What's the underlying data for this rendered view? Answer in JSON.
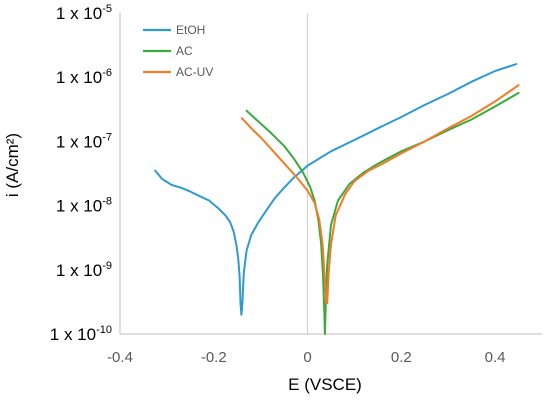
{
  "chart_data": {
    "type": "line",
    "title": "",
    "xlabel": "E (VSCE)",
    "ylabel": "i (A/cm²)",
    "xlim": [
      -0.4,
      0.5
    ],
    "ylim": [
      1e-10,
      1e-05
    ],
    "y_scale": "log",
    "grid": false,
    "legend_position": "top-left",
    "x_ticks": [
      "-0.4",
      "-0.2",
      "0",
      "0.2",
      "0.4"
    ],
    "y_ticks": [
      {
        "value": 1e-05,
        "base": "1 x 10",
        "exp": "-5"
      },
      {
        "value": 1e-06,
        "base": "1 x 10",
        "exp": "-6"
      },
      {
        "value": 1e-07,
        "base": "1 x 10",
        "exp": "-7"
      },
      {
        "value": 1e-08,
        "base": "1 x 10",
        "exp": "-8"
      },
      {
        "value": 1e-09,
        "base": "1 x 10",
        "exp": "-9"
      },
      {
        "value": 1e-10,
        "base": "1 x 10",
        "exp": "-10"
      }
    ],
    "series": [
      {
        "name": "EtOH",
        "color": "#2E9AD0",
        "points": [
          [
            -0.325,
            3.5e-08
          ],
          [
            -0.31,
            2.6e-08
          ],
          [
            -0.29,
            2.1e-08
          ],
          [
            -0.27,
            1.9e-08
          ],
          [
            -0.25,
            1.65e-08
          ],
          [
            -0.23,
            1.4e-08
          ],
          [
            -0.21,
            1.2e-08
          ],
          [
            -0.19,
            9e-09
          ],
          [
            -0.175,
            7e-09
          ],
          [
            -0.165,
            5.5e-09
          ],
          [
            -0.158,
            4e-09
          ],
          [
            -0.152,
            2.5e-09
          ],
          [
            -0.148,
            1.5e-09
          ],
          [
            -0.145,
            8e-10
          ],
          [
            -0.143,
            3e-10
          ],
          [
            -0.141,
            2e-10
          ],
          [
            -0.139,
            3e-10
          ],
          [
            -0.136,
            9e-10
          ],
          [
            -0.13,
            2e-09
          ],
          [
            -0.12,
            3.5e-09
          ],
          [
            -0.105,
            5.5e-09
          ],
          [
            -0.09,
            8e-09
          ],
          [
            -0.07,
            1.3e-08
          ],
          [
            -0.05,
            1.9e-08
          ],
          [
            -0.03,
            2.7e-08
          ],
          [
            -0.01,
            3.6e-08
          ],
          [
            0.0,
            4.2e-08
          ],
          [
            0.05,
            7e-08
          ],
          [
            0.1,
            1.05e-07
          ],
          [
            0.15,
            1.6e-07
          ],
          [
            0.2,
            2.4e-07
          ],
          [
            0.25,
            3.7e-07
          ],
          [
            0.3,
            5.5e-07
          ],
          [
            0.35,
            8.5e-07
          ],
          [
            0.4,
            1.25e-06
          ],
          [
            0.445,
            1.6e-06
          ]
        ]
      },
      {
        "name": "AC",
        "color": "#3CA93C",
        "points": [
          [
            -0.13,
            3e-07
          ],
          [
            -0.11,
            2.2e-07
          ],
          [
            -0.08,
            1.4e-07
          ],
          [
            -0.05,
            8.5e-08
          ],
          [
            -0.03,
            5.5e-08
          ],
          [
            -0.01,
            3.3e-08
          ],
          [
            0.005,
            2e-08
          ],
          [
            0.015,
            1.2e-08
          ],
          [
            0.023,
            6e-09
          ],
          [
            0.029,
            2.5e-09
          ],
          [
            0.033,
            8e-10
          ],
          [
            0.036,
            2e-10
          ],
          [
            0.037,
            1e-10
          ],
          [
            0.039,
            3e-10
          ],
          [
            0.042,
            1.2e-09
          ],
          [
            0.05,
            5e-09
          ],
          [
            0.065,
            1.2e-08
          ],
          [
            0.09,
            2.2e-08
          ],
          [
            0.12,
            3.3e-08
          ],
          [
            0.15,
            4.5e-08
          ],
          [
            0.2,
            7e-08
          ],
          [
            0.25,
            1e-07
          ],
          [
            0.3,
            1.5e-07
          ],
          [
            0.35,
            2.2e-07
          ],
          [
            0.4,
            3.5e-07
          ],
          [
            0.45,
            5.7e-07
          ]
        ]
      },
      {
        "name": "AC-UV",
        "color": "#F07C28",
        "points": [
          [
            -0.14,
            2.3e-07
          ],
          [
            -0.12,
            1.6e-07
          ],
          [
            -0.1,
            1.15e-07
          ],
          [
            -0.08,
            8e-08
          ],
          [
            -0.06,
            5.5e-08
          ],
          [
            -0.04,
            3.8e-08
          ],
          [
            -0.02,
            2.6e-08
          ],
          [
            0.0,
            1.7e-08
          ],
          [
            0.015,
            1.1e-08
          ],
          [
            0.025,
            6e-09
          ],
          [
            0.032,
            2.5e-09
          ],
          [
            0.036,
            9e-10
          ],
          [
            0.04,
            3e-10
          ],
          [
            0.042,
            3e-10
          ],
          [
            0.045,
            9e-10
          ],
          [
            0.05,
            2.5e-09
          ],
          [
            0.06,
            7e-09
          ],
          [
            0.08,
            1.5e-08
          ],
          [
            0.1,
            2.4e-08
          ],
          [
            0.13,
            3.5e-08
          ],
          [
            0.16,
            4.5e-08
          ],
          [
            0.2,
            6.5e-08
          ],
          [
            0.25,
            1e-07
          ],
          [
            0.3,
            1.6e-07
          ],
          [
            0.35,
            2.5e-07
          ],
          [
            0.4,
            4.2e-07
          ],
          [
            0.45,
            7.5e-07
          ]
        ]
      }
    ]
  }
}
